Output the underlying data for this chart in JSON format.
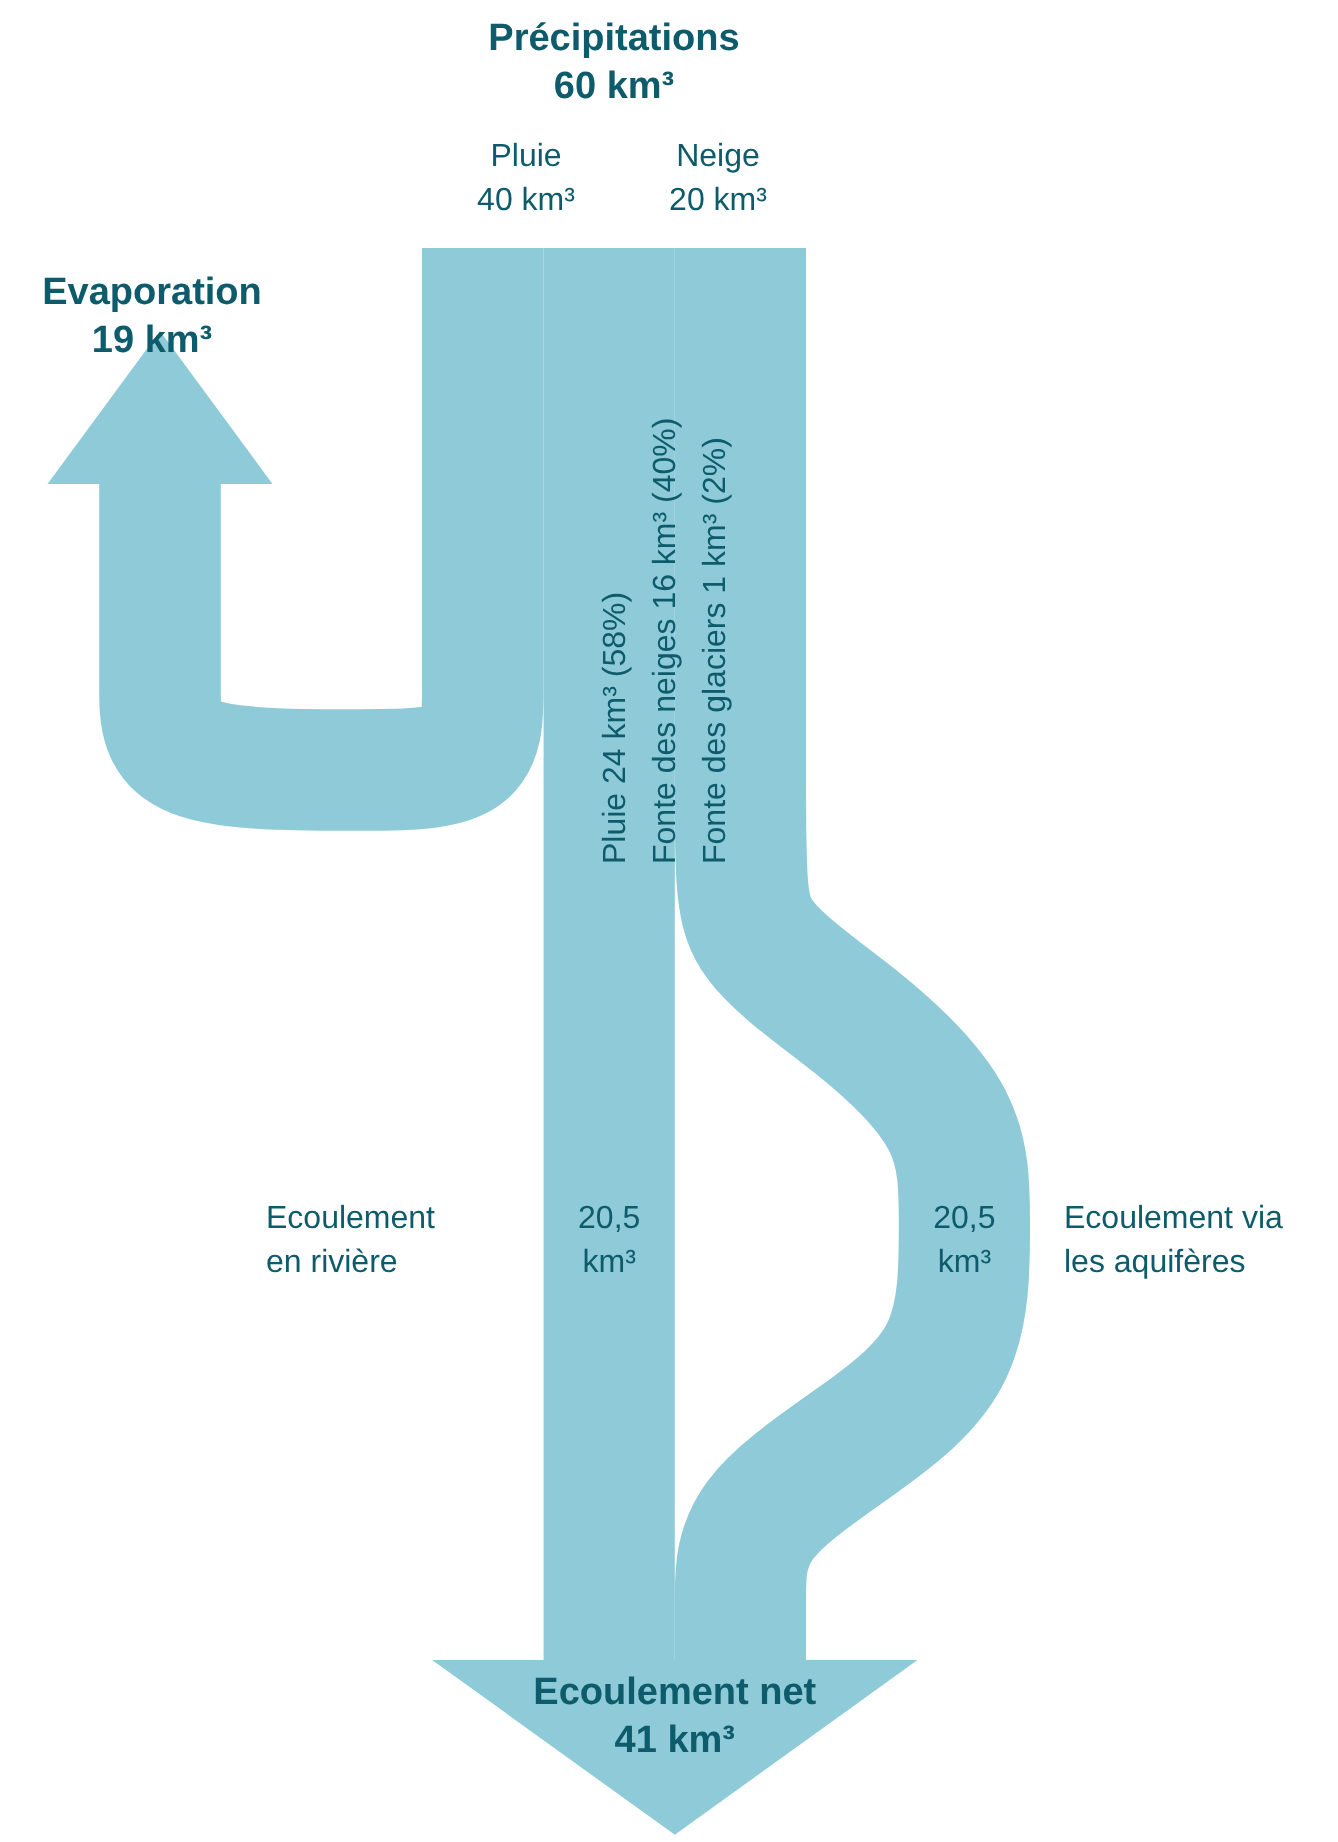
{
  "chart_data": {
    "type": "other",
    "categories": [
      "Précipitations",
      "Pluie",
      "Neige",
      "Evaporation",
      "Ecoulement\nen rivière",
      "Ecoulement via\nles aquifères",
      "Ecoulement net"
    ],
    "values": [
      60,
      40,
      20,
      19,
      20.5,
      20.5,
      41
    ],
    "value_labels": [
      "60 km³",
      "40 km³",
      "20 km³",
      "19 km³",
      "20,5\nkm³",
      "20,5\nkm³",
      "41 km³"
    ],
    "color": "#8ecad8",
    "annotations": [
      "Pluie 24 km³ (58%)",
      "Fonte des neiges 16 km³ (40%)",
      "Fonte des glaciers 1 km³ (2%)"
    ]
  }
}
